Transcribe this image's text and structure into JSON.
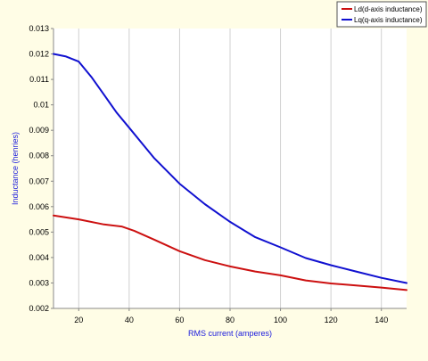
{
  "chart_data": {
    "type": "line",
    "xlabel": "RMS current (amperes)",
    "ylabel": "Inductance (henries)",
    "xlim": [
      10,
      150
    ],
    "ylim": [
      0.002,
      0.013
    ],
    "x_ticks": [
      20,
      40,
      60,
      80,
      100,
      120,
      140
    ],
    "y_ticks": [
      0.002,
      0.003,
      0.004,
      0.005,
      0.006,
      0.007,
      0.008,
      0.009,
      0.01,
      0.011,
      0.012,
      0.013
    ],
    "y_tick_labels": [
      "0.002",
      "0.003",
      "0.004",
      "0.005",
      "0.006",
      "0.007",
      "0.008",
      "0.009",
      "0.01",
      "0.011",
      "0.012",
      "0.013"
    ],
    "grid": "vertical",
    "legend_position": "top-right",
    "series": [
      {
        "name": "Ld(d-axis inductance)",
        "color": "#cc1010",
        "x": [
          10,
          20,
          30,
          37,
          42,
          50,
          60,
          70,
          80,
          90,
          100,
          110,
          120,
          130,
          140,
          150
        ],
        "y": [
          0.00565,
          0.0055,
          0.0053,
          0.00522,
          0.00505,
          0.0047,
          0.00425,
          0.0039,
          0.00365,
          0.00345,
          0.0033,
          0.0031,
          0.00298,
          0.0029,
          0.00282,
          0.00272
        ]
      },
      {
        "name": "Lq(q-axis inductance)",
        "color": "#1010d0",
        "x": [
          10,
          15,
          20,
          25,
          30,
          35,
          40,
          45,
          50,
          60,
          70,
          80,
          90,
          100,
          110,
          120,
          130,
          140,
          150
        ],
        "y": [
          0.012,
          0.0119,
          0.0117,
          0.0111,
          0.0104,
          0.0097,
          0.0091,
          0.0085,
          0.0079,
          0.0069,
          0.0061,
          0.0054,
          0.0048,
          0.0044,
          0.00398,
          0.0037,
          0.00345,
          0.0032,
          0.003
        ]
      }
    ]
  }
}
